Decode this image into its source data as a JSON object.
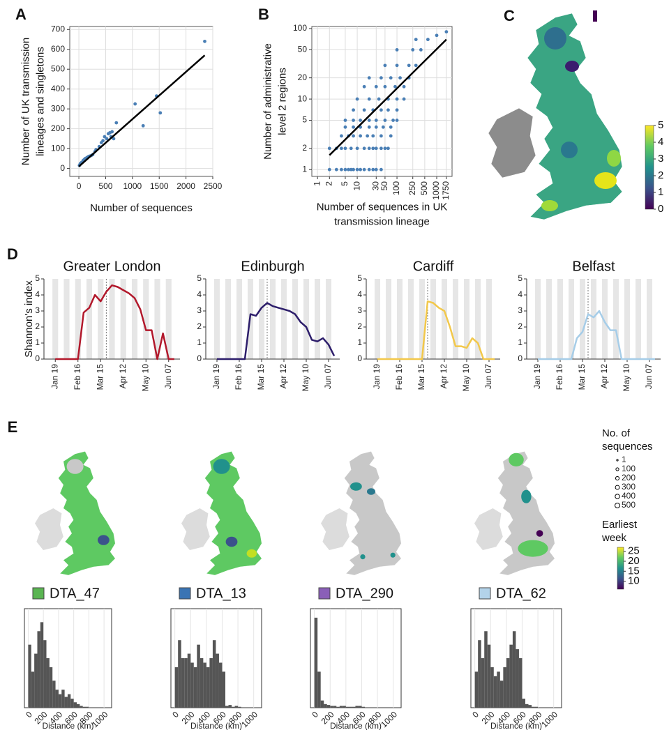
{
  "chart_data": [
    {
      "type": "scatter",
      "panel": "A",
      "xlabel": "Number of sequences",
      "ylabel": [
        "Number of UK transmission",
        "lineages and singletons"
      ],
      "color": "#4a7fb5",
      "grid": true,
      "x": [
        10,
        20,
        30,
        50,
        80,
        100,
        120,
        150,
        180,
        200,
        230,
        260,
        300,
        320,
        380,
        420,
        450,
        480,
        520,
        550,
        580,
        600,
        620,
        650,
        700,
        1050,
        1200,
        1450,
        1520,
        2350
      ],
      "y": [
        15,
        20,
        25,
        30,
        40,
        45,
        50,
        55,
        60,
        62,
        65,
        70,
        85,
        95,
        110,
        130,
        140,
        160,
        150,
        175,
        180,
        160,
        185,
        150,
        230,
        325,
        215,
        365,
        280,
        640
      ],
      "fit": {
        "x": [
          0,
          2350
        ],
        "y": [
          10,
          570
        ]
      },
      "xlim": [
        -170,
        2500
      ],
      "xticks": [
        0,
        500,
        1000,
        1500,
        2000,
        2500
      ],
      "ylim": [
        -40,
        715
      ],
      "yticks": [
        0,
        100,
        200,
        300,
        400,
        500,
        600,
        700
      ]
    },
    {
      "type": "scatter",
      "panel": "B",
      "xlabel": [
        "Number of sequences in UK",
        "transmission lineage"
      ],
      "ylabel": [
        "Number of administrative",
        "level 2 regions"
      ],
      "color": "#4a7fb5",
      "grid": true,
      "xlog": true,
      "ylog": true,
      "xtick_rotation": -90,
      "x": [
        2,
        3,
        4,
        5,
        6,
        7,
        8,
        10,
        12,
        15,
        20,
        25,
        30,
        40,
        2,
        3,
        4,
        5,
        7,
        10,
        15,
        20,
        25,
        30,
        40,
        50,
        60,
        4,
        6,
        8,
        12,
        18,
        25,
        40,
        70,
        5,
        8,
        12,
        20,
        30,
        45,
        70,
        5,
        8,
        12,
        20,
        30,
        50,
        80,
        100,
        8,
        15,
        25,
        40,
        60,
        100,
        10,
        20,
        35,
        60,
        100,
        150,
        15,
        30,
        50,
        90,
        150,
        20,
        40,
        70,
        120,
        200,
        50,
        100,
        200,
        300,
        100,
        250,
        400,
        300,
        600,
        1000,
        1750
      ],
      "y": [
        1,
        1,
        1,
        1,
        1,
        1,
        1,
        1,
        1,
        1,
        1,
        1,
        1,
        1,
        2,
        2,
        2,
        2,
        2,
        2,
        2,
        2,
        2,
        2,
        2,
        2,
        2,
        3,
        3,
        3,
        3,
        3,
        3,
        3,
        3,
        4,
        4,
        4,
        4,
        4,
        4,
        4,
        5,
        5,
        5,
        5,
        5,
        5,
        5,
        5,
        7,
        7,
        7,
        7,
        7,
        7,
        10,
        10,
        10,
        10,
        10,
        10,
        15,
        15,
        15,
        15,
        15,
        20,
        20,
        20,
        20,
        20,
        30,
        30,
        30,
        30,
        50,
        50,
        50,
        70,
        70,
        80,
        90
      ],
      "fit": {
        "x": [
          2,
          1750
        ],
        "y": [
          1.6,
          70
        ]
      },
      "xlim": [
        0.72,
        2430
      ],
      "xticks": [
        1,
        2,
        5,
        10,
        30,
        50,
        100,
        250,
        500,
        1000,
        1750
      ],
      "ylim": [
        0.8,
        107
      ],
      "yticks": [
        1,
        2,
        5,
        10,
        20,
        50,
        100
      ]
    },
    {
      "type": "map",
      "panel": "C",
      "colorbar": {
        "lim": [
          0,
          5
        ],
        "ticks": [
          0,
          1,
          2,
          3,
          4,
          5
        ]
      }
    },
    {
      "type": "line",
      "panel": "D",
      "title": "Greater London",
      "ylabel": "Shannon's index",
      "color": "#b2182b",
      "vline": 9,
      "categories": [
        "Jan 19",
        null,
        null,
        null,
        "Feb 16",
        null,
        null,
        null,
        "Mar 15",
        null,
        null,
        null,
        "Apr 12",
        null,
        null,
        null,
        "May 10",
        null,
        null,
        null,
        "Jun 07",
        null
      ],
      "values": [
        0,
        0,
        0,
        0,
        0,
        2.9,
        3.2,
        4.0,
        3.6,
        4.2,
        4.6,
        4.5,
        4.3,
        4.1,
        3.8,
        3.1,
        1.8,
        1.8,
        0,
        1.6,
        0,
        0
      ],
      "ylim": [
        0,
        5
      ],
      "yticks": [
        0,
        1,
        2,
        3,
        4,
        5
      ]
    },
    {
      "type": "line",
      "title": "Edinburgh",
      "color": "#2d1e6b",
      "vline": 9,
      "categories": [
        "Jan 19",
        null,
        null,
        null,
        "Feb 16",
        null,
        null,
        null,
        "Mar 15",
        null,
        null,
        null,
        "Apr 12",
        null,
        null,
        null,
        "May 10",
        null,
        null,
        null,
        "Jun 07",
        null
      ],
      "values": [
        0,
        0,
        0,
        0,
        0,
        0,
        2.8,
        2.7,
        3.2,
        3.5,
        3.3,
        3.2,
        3.1,
        3.0,
        2.8,
        2.3,
        2.0,
        1.2,
        1.1,
        1.3,
        0.9,
        0.2
      ],
      "ylim": [
        0,
        5
      ],
      "yticks": [
        0,
        1,
        2,
        3,
        4,
        5
      ]
    },
    {
      "type": "line",
      "title": "Cardiff",
      "color": "#f2c84b",
      "vline": 9,
      "categories": [
        "Jan 19",
        null,
        null,
        null,
        "Feb 16",
        null,
        null,
        null,
        "Mar 15",
        null,
        null,
        null,
        "Apr 12",
        null,
        null,
        null,
        "May 10",
        null,
        null,
        null,
        "Jun 07",
        null
      ],
      "values": [
        0,
        0,
        0,
        0,
        0,
        0,
        0,
        0,
        0,
        3.6,
        3.5,
        3.2,
        3.0,
        2.0,
        0.8,
        0.8,
        0.7,
        1.3,
        1.0,
        0,
        0,
        0
      ],
      "ylim": [
        0,
        5
      ],
      "yticks": [
        0,
        1,
        2,
        3,
        4,
        5
      ]
    },
    {
      "type": "line",
      "title": "Belfast",
      "color": "#a6cde8",
      "vline": 9,
      "categories": [
        "Jan 19",
        null,
        null,
        null,
        "Feb 16",
        null,
        null,
        null,
        "Mar 15",
        null,
        null,
        null,
        "Apr 12",
        null,
        null,
        null,
        "May 10",
        null,
        null,
        null,
        "Jun 07",
        null
      ],
      "values": [
        0,
        0,
        0,
        0,
        0,
        0,
        0,
        1.3,
        1.7,
        2.8,
        2.6,
        3.0,
        2.3,
        1.8,
        1.8,
        0,
        0,
        0,
        0,
        0,
        0,
        0
      ],
      "ylim": [
        0,
        5
      ],
      "yticks": [
        0,
        1,
        2,
        3,
        4,
        5
      ]
    },
    {
      "type": "histogram",
      "title": "DTA_47",
      "chip_color": "#5ab552",
      "color": "#555555",
      "xlabel": "Distance (km)",
      "xtick_rotation": -45,
      "bins": [
        0,
        40,
        80,
        120,
        160,
        200,
        240,
        280,
        320,
        360,
        400,
        440,
        480,
        520,
        560,
        600,
        640,
        680,
        720,
        760,
        800,
        840,
        880,
        920,
        960,
        1000
      ],
      "values": [
        70,
        40,
        60,
        85,
        95,
        75,
        55,
        45,
        30,
        20,
        15,
        20,
        12,
        15,
        10,
        6,
        4,
        2,
        1,
        1,
        0,
        0,
        0,
        0,
        0
      ],
      "xlim": [
        -50,
        1100
      ],
      "xticks": [
        0,
        200,
        400,
        600,
        800,
        1000
      ],
      "ylim": [
        0,
        110
      ]
    },
    {
      "type": "histogram",
      "title": "DTA_13",
      "chip_color": "#3a74b4",
      "color": "#555555",
      "xlabel": "Distance (km)",
      "xtick_rotation": -45,
      "bins": [
        0,
        40,
        80,
        120,
        160,
        200,
        240,
        280,
        320,
        360,
        400,
        440,
        480,
        520,
        560,
        600,
        640,
        680,
        720,
        760,
        800,
        840,
        880,
        920,
        960,
        1000
      ],
      "values": [
        45,
        75,
        55,
        55,
        60,
        50,
        45,
        70,
        55,
        50,
        45,
        55,
        75,
        60,
        50,
        40,
        2,
        3,
        1,
        2,
        1,
        0,
        0,
        0,
        0
      ],
      "xlim": [
        -50,
        1100
      ],
      "xticks": [
        0,
        200,
        400,
        600,
        800,
        1000
      ],
      "ylim": [
        0,
        110
      ]
    },
    {
      "type": "histogram",
      "title": "DTA_290",
      "chip_color": "#8a5fb8",
      "color": "#555555",
      "xlabel": "Distance (km)",
      "xtick_rotation": -45,
      "bins": [
        0,
        40,
        80,
        120,
        160,
        200,
        240,
        280,
        320,
        360,
        400,
        440,
        480,
        520,
        560,
        600,
        640,
        680,
        720,
        760,
        800,
        840,
        880,
        920,
        960,
        1000
      ],
      "values": [
        100,
        40,
        8,
        4,
        3,
        2,
        2,
        1,
        2,
        2,
        1,
        1,
        1,
        2,
        2,
        1,
        0,
        0,
        0,
        0,
        0,
        0,
        0,
        0,
        0
      ],
      "xlim": [
        -50,
        1100
      ],
      "xticks": [
        0,
        200,
        400,
        600,
        800,
        1000
      ],
      "ylim": [
        0,
        110
      ]
    },
    {
      "type": "histogram",
      "title": "DTA_62",
      "chip_color": "#b3d3ea",
      "color": "#555555",
      "xlabel": "Distance (km)",
      "xtick_rotation": -45,
      "bins": [
        0,
        40,
        80,
        120,
        160,
        200,
        240,
        280,
        320,
        360,
        400,
        440,
        480,
        520,
        560,
        600,
        640,
        680,
        720,
        760,
        800,
        840,
        880,
        920,
        960,
        1000
      ],
      "values": [
        40,
        75,
        55,
        85,
        70,
        45,
        35,
        40,
        30,
        45,
        55,
        70,
        85,
        65,
        55,
        10,
        4,
        3,
        1,
        1,
        0,
        0,
        0,
        0,
        0
      ],
      "xlim": [
        -50,
        1100
      ],
      "xticks": [
        0,
        200,
        400,
        600,
        800,
        1000
      ],
      "ylim": [
        0,
        110
      ]
    },
    {
      "type": "map",
      "panel": "E",
      "size_legend": {
        "title": [
          "No. of",
          "sequences"
        ],
        "values": [
          1,
          100,
          200,
          300,
          400,
          500
        ]
      },
      "colorbar": {
        "title": [
          "Earliest",
          "week"
        ],
        "lim": [
          6,
          27
        ],
        "ticks": [
          10,
          15,
          20,
          25
        ]
      }
    }
  ]
}
